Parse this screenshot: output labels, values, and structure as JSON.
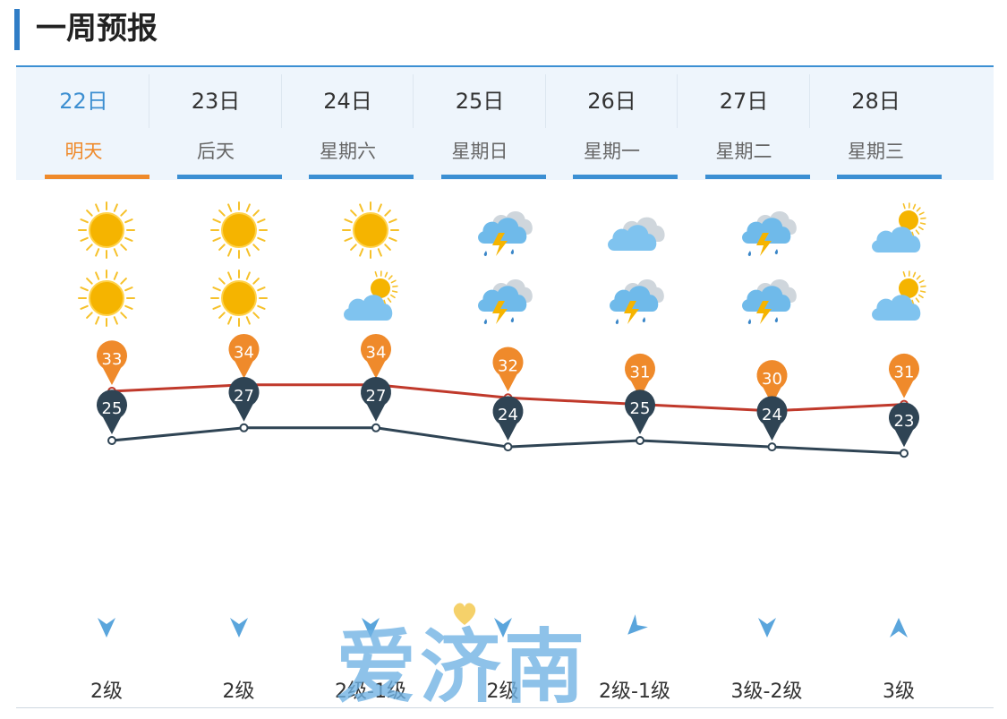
{
  "page": {
    "title": "一周预报",
    "watermark": "爱济南"
  },
  "days": [
    {
      "date": "22日",
      "weekday": "明天",
      "active": true,
      "day_icon": "sun-icon",
      "night_icon": "sun-icon",
      "high": "33",
      "low": "25",
      "wind_dir": "north",
      "wind": "2级"
    },
    {
      "date": "23日",
      "weekday": "后天",
      "active": false,
      "day_icon": "sun-icon",
      "night_icon": "sun-icon",
      "high": "34",
      "low": "27",
      "wind_dir": "north",
      "wind": "2级"
    },
    {
      "date": "24日",
      "weekday": "星期六",
      "active": false,
      "day_icon": "sun-icon",
      "night_icon": "partly-cloudy-icon",
      "high": "34",
      "low": "27",
      "wind_dir": "north",
      "wind": "2级-1级"
    },
    {
      "date": "25日",
      "weekday": "星期日",
      "active": false,
      "day_icon": "thunderstorm-icon",
      "night_icon": "thunderstorm-icon",
      "high": "32",
      "low": "24",
      "wind_dir": "north",
      "wind": "2级"
    },
    {
      "date": "26日",
      "weekday": "星期一",
      "active": false,
      "day_icon": "cloudy-icon",
      "night_icon": "thunderstorm-icon",
      "high": "31",
      "low": "25",
      "wind_dir": "northeast",
      "wind": "2级-1级"
    },
    {
      "date": "27日",
      "weekday": "星期二",
      "active": false,
      "day_icon": "thunderstorm-icon",
      "night_icon": "thunderstorm-icon",
      "high": "30",
      "low": "24",
      "wind_dir": "north",
      "wind": "3级-2级"
    },
    {
      "date": "28日",
      "weekday": "星期三",
      "active": false,
      "day_icon": "partly-cloudy-icon",
      "night_icon": "partly-cloudy-icon",
      "high": "31",
      "low": "23",
      "wind_dir": "south",
      "wind": "3级"
    }
  ],
  "colors": {
    "accent": "#3b8fd3",
    "active": "#ef8a2b",
    "high_line": "#c0392b",
    "low_line": "#2f4454",
    "high_pin": "#ef8a2b",
    "low_pin": "#2f4454",
    "wind_arrow": "#5aa5dc"
  }
}
